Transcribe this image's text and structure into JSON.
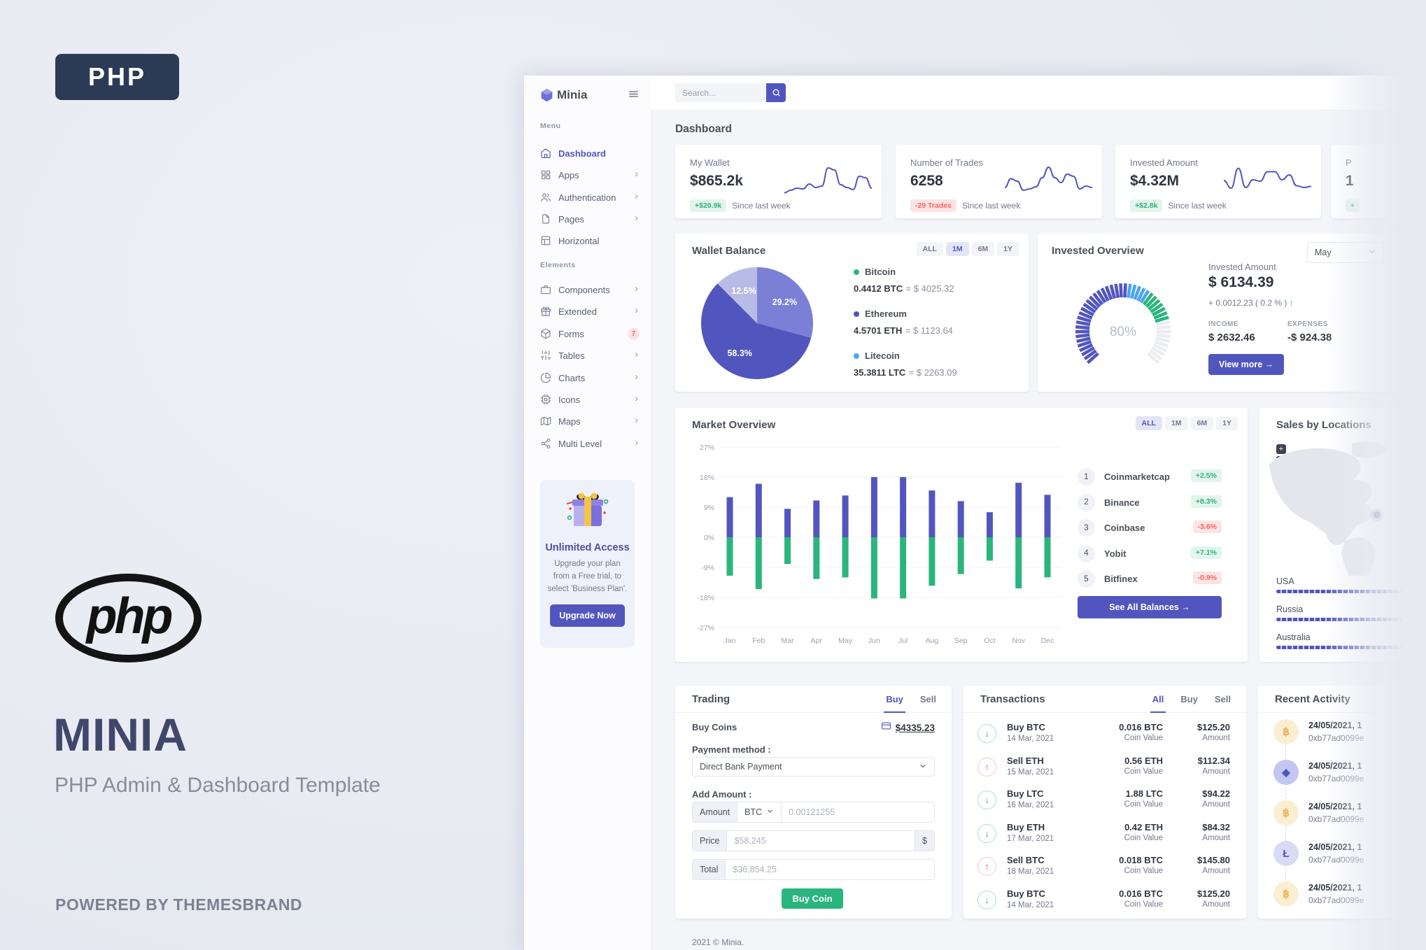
{
  "brand": {
    "php_badge": "PHP",
    "php_logo_text": "php",
    "title": "MINIA",
    "subtitle": "PHP Admin & Dashboard Template",
    "powered_by": "POWERED BY THEMESBRAND"
  },
  "colors": {
    "primary": "#5156be",
    "success": "#2ab57d",
    "danger": "#fd625e",
    "info": "#4ba6ef",
    "warning": "#f1b44c",
    "navy": "#2b3a55"
  },
  "sidebar": {
    "logo_text": "Minia",
    "sections": [
      {
        "label": "Menu",
        "items": [
          {
            "icon": "home",
            "label": "Dashboard",
            "active": true
          },
          {
            "icon": "grid",
            "label": "Apps",
            "arrow": true
          },
          {
            "icon": "users",
            "label": "Authentication",
            "arrow": true
          },
          {
            "icon": "file",
            "label": "Pages",
            "arrow": true
          },
          {
            "icon": "layout",
            "label": "Horizontal"
          }
        ]
      },
      {
        "label": "Elements",
        "items": [
          {
            "icon": "briefcase",
            "label": "Components",
            "arrow": true
          },
          {
            "icon": "gift",
            "label": "Extended",
            "arrow": true
          },
          {
            "icon": "box",
            "label": "Forms",
            "badge": "7"
          },
          {
            "icon": "sliders",
            "label": "Tables",
            "arrow": true
          },
          {
            "icon": "pie",
            "label": "Charts",
            "arrow": true
          },
          {
            "icon": "cpu",
            "label": "Icons",
            "arrow": true
          },
          {
            "icon": "map",
            "label": "Maps",
            "arrow": true
          },
          {
            "icon": "share",
            "label": "Multi Level",
            "arrow": true
          }
        ]
      }
    ],
    "upgrade": {
      "title": "Unlimited Access",
      "text": "Upgrade your plan from a Free trial, to select 'Business Plan'.",
      "button": "Upgrade Now"
    }
  },
  "header": {
    "search_placeholder": "Search..."
  },
  "page": {
    "title": "Dashboard",
    "footer": "2021 © Minia."
  },
  "stat_cards": [
    {
      "label": "My Wallet",
      "value": "$865.2k",
      "badge": "+$20.9k",
      "badge_type": "success",
      "caption": "Since last week",
      "spark": [
        15,
        22,
        28,
        26,
        40,
        30,
        34,
        86,
        80,
        38,
        30,
        24,
        62,
        58,
        28
      ]
    },
    {
      "label": "Number of Trades",
      "value": "6258",
      "badge": "-29 Trades",
      "badge_type": "danger",
      "caption": "Since last week",
      "spark": [
        30,
        55,
        48,
        22,
        26,
        32,
        58,
        88,
        58,
        44,
        68,
        62,
        26,
        34,
        30
      ]
    },
    {
      "label": "Invested Amount",
      "value": "$4.32M",
      "badge": "+$2.8k",
      "badge_type": "success",
      "caption": "Since last week",
      "spark": [
        50,
        28,
        85,
        30,
        52,
        48,
        75,
        75,
        52,
        66,
        35,
        30,
        33
      ]
    },
    {
      "label": "P",
      "value": "1",
      "badge": "+",
      "badge_type": "success",
      "caption": "",
      "spark": null
    }
  ],
  "wallet_balance": {
    "title": "Wallet Balance",
    "tabs": [
      "ALL",
      "1M",
      "6M",
      "1Y"
    ],
    "active_tab": "1M",
    "chart_data": {
      "type": "pie",
      "slices": [
        {
          "label": "29.2%",
          "value": 29.2,
          "color": "#7b80d6"
        },
        {
          "label": "58.3%",
          "value": 58.3,
          "color": "#5156be"
        },
        {
          "label": "12.5%",
          "value": 12.5,
          "color": "#b8bbe6"
        }
      ]
    },
    "legend": [
      {
        "name": "Bitcoin",
        "dot": "#2ab57d",
        "amount": "0.4412 BTC",
        "eq": "= $ 4025.32"
      },
      {
        "name": "Ethereum",
        "dot": "#5156be",
        "amount": "4.5701 ETH",
        "eq": "= $ 1123.64"
      },
      {
        "name": "Litecoin",
        "dot": "#4ba6ef",
        "amount": "35.3811 LTC",
        "eq": "= $ 2263.09"
      }
    ]
  },
  "invested_overview": {
    "title": "Invested Overview",
    "select_value": "May",
    "gauge": {
      "percent": 80,
      "label": "80%"
    },
    "amount_label": "Invested Amount",
    "amount": "$ 6134.39",
    "change": "+ 0.0012.23 ( 0.2 % )",
    "income_label": "INCOME",
    "income": "$ 2632.46",
    "expenses_label": "EXPENSES",
    "expenses": "-$ 924.38",
    "button": "View more"
  },
  "market_overview": {
    "title": "Market Overview",
    "tabs": [
      "ALL",
      "1M",
      "6M",
      "1Y"
    ],
    "active_tab": "ALL",
    "chart_data": {
      "type": "bar",
      "categories": [
        "Jan",
        "Feb",
        "Mar",
        "Apr",
        "May",
        "Jun",
        "Jul",
        "Aug",
        "Sep",
        "Oct",
        "Nov",
        "Dec"
      ],
      "series": [
        {
          "name": "Gain",
          "color": "#5156be",
          "values": [
            12,
            16,
            8.5,
            11,
            12.5,
            18,
            18,
            14,
            10.8,
            7.5,
            16.3,
            12.7
          ]
        },
        {
          "name": "Loss",
          "color": "#2ab57d",
          "values": [
            -11.5,
            -15.5,
            -8,
            -12.5,
            -12,
            -18.3,
            -18.3,
            -14.5,
            -11,
            -7,
            -15.3,
            -12
          ]
        }
      ],
      "ylim": [
        -27,
        27
      ],
      "yticks": [
        "27%",
        "18%",
        "9%",
        "0%",
        "-9%",
        "-18%",
        "-27%"
      ]
    },
    "list": [
      {
        "rank": "1",
        "name": "Coinmarketcap",
        "badge": "+2.5%",
        "badge_type": "success"
      },
      {
        "rank": "2",
        "name": "Binance",
        "badge": "+8.3%",
        "badge_type": "success"
      },
      {
        "rank": "3",
        "name": "Coinbase",
        "badge": "-3.6%",
        "badge_type": "danger"
      },
      {
        "rank": "4",
        "name": "Yobit",
        "badge": "+7.1%",
        "badge_type": "success"
      },
      {
        "rank": "5",
        "name": "Bitfinex",
        "badge": "-0.9%",
        "badge_type": "danger"
      }
    ],
    "button": "See All Balances"
  },
  "sales_by_locations": {
    "title": "Sales by Locations",
    "zoom_in": "+",
    "zoom_out": "−",
    "locations": [
      {
        "name": "USA"
      },
      {
        "name": "Russia"
      },
      {
        "name": "Australia"
      }
    ]
  },
  "trading": {
    "title": "Trading",
    "tabs": [
      "Buy",
      "Sell"
    ],
    "active_tab": "Buy",
    "buy_coins_label": "Buy Coins",
    "balance": "$4335.23",
    "payment_label": "Payment method :",
    "payment_value": "Direct Bank Payment",
    "add_amount_label": "Add Amount :",
    "amount_addon": "Amount",
    "currency": "BTC",
    "amount_placeholder": "0.00121255",
    "price_addon": "Price",
    "price_placeholder": "$58,245",
    "currency_symbol": "$",
    "total_addon": "Total",
    "total_placeholder": "$36,854.25",
    "button": "Buy Coin"
  },
  "transactions": {
    "title": "Transactions",
    "tabs": [
      "All",
      "Buy",
      "Sell"
    ],
    "active_tab": "All",
    "coin_label": "Coin Value",
    "amount_label": "Amount",
    "rows": [
      {
        "dir": "buy",
        "title": "Buy BTC",
        "date": "14 Mar, 2021",
        "coin": "0.016 BTC",
        "amount": "$125.20"
      },
      {
        "dir": "sell",
        "title": "Sell ETH",
        "date": "15 Mar, 2021",
        "coin": "0.56 ETH",
        "amount": "$112.34"
      },
      {
        "dir": "buy",
        "title": "Buy LTC",
        "date": "16 Mar, 2021",
        "coin": "1.88 LTC",
        "amount": "$94.22"
      },
      {
        "dir": "buy",
        "title": "Buy ETH",
        "date": "17 Mar, 2021",
        "coin": "0.42 ETH",
        "amount": "$84.32"
      },
      {
        "dir": "sell",
        "title": "Sell BTC",
        "date": "18 Mar, 2021",
        "coin": "0.018 BTC",
        "amount": "$145.80"
      },
      {
        "dir": "buy",
        "title": "Buy BTC",
        "date": "14 Mar, 2021",
        "coin": "0.016 BTC",
        "amount": "$125.20"
      }
    ]
  },
  "recent_activity": {
    "title": "Recent Activity",
    "items": [
      {
        "coin": "btc",
        "date": "24/05/2021, 1",
        "hash": "0xb77ad0099e"
      },
      {
        "coin": "eth",
        "date": "24/05/2021, 1",
        "hash": "0xb77ad0099e"
      },
      {
        "coin": "btc",
        "date": "24/05/2021, 1",
        "hash": "0xb77ad0099e"
      },
      {
        "coin": "ltc",
        "date": "24/05/2021, 1",
        "hash": "0xb77ad0099e"
      },
      {
        "coin": "btc",
        "date": "24/05/2021, 1",
        "hash": "0xb77ad0099e"
      }
    ]
  }
}
